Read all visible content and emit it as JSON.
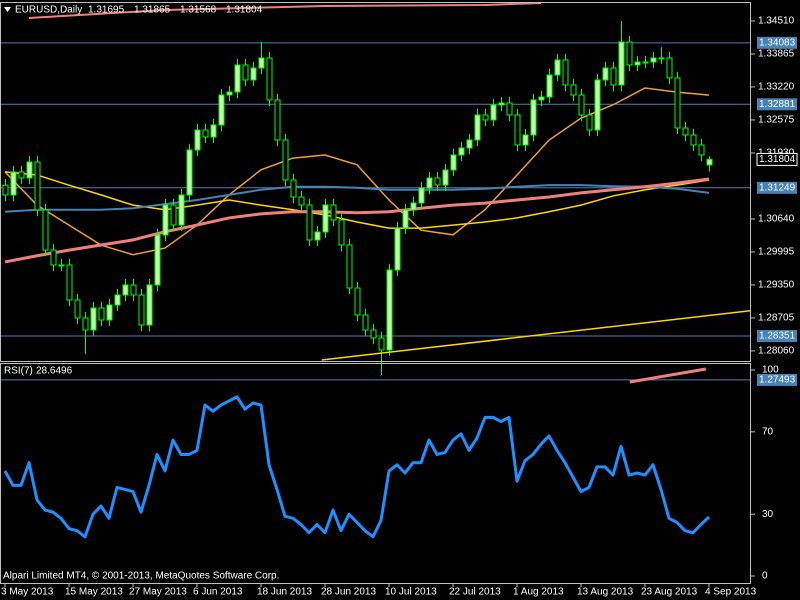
{
  "watermark": "Alpari Limited MT4, © 2001-2013, MetaQuotes Software Corp.",
  "chart_data": [
    {
      "type": "candlestick",
      "title": "EURUSD,Daily",
      "categories": [
        "3 May 2013",
        null,
        null,
        null,
        null,
        null,
        null,
        null,
        "15 May 2013",
        null,
        null,
        null,
        null,
        null,
        null,
        null,
        "27 May 2013",
        null,
        null,
        null,
        null,
        null,
        null,
        null,
        "6 Jun 2013",
        null,
        null,
        null,
        null,
        null,
        null,
        null,
        "18 Jun 2013",
        null,
        null,
        null,
        null,
        null,
        null,
        null,
        "28 Jun 2013",
        null,
        null,
        null,
        null,
        null,
        null,
        null,
        "10 Jul 2013",
        null,
        null,
        null,
        null,
        null,
        null,
        null,
        "22 Jul 2013",
        null,
        null,
        null,
        null,
        null,
        null,
        null,
        "1 Aug 2013",
        null,
        null,
        null,
        null,
        null,
        null,
        null,
        "13 Aug 2013",
        null,
        null,
        null,
        null,
        null,
        null,
        null,
        "23 Aug 2013",
        null,
        null,
        null,
        null,
        null,
        null,
        null,
        "4 Sep 2013"
      ],
      "open": [
        1.313,
        1.31108,
        1.31558,
        1.31441,
        1.31753,
        1.30815,
        1.30033,
        1.2974,
        1.2974,
        1.29056,
        1.28704,
        1.28469,
        1.28899,
        1.28665,
        1.28958,
        1.29153,
        1.29349,
        1.29153,
        1.28567,
        1.29349,
        1.30326,
        1.30913,
        1.30522,
        1.31108,
        1.31988,
        1.32379,
        1.32242,
        1.32477,
        1.33063,
        1.33122,
        1.3365,
        1.33357,
        1.33591,
        1.33787,
        1.32966,
        1.32184,
        1.31402,
        1.31069,
        1.30913,
        1.30229,
        1.30385,
        1.30913,
        1.3062,
        1.30131,
        1.2929,
        1.28762,
        1.28469,
        1.28313,
        1.28078,
        1.29642,
        1.30463,
        1.30815,
        1.30952,
        1.31245,
        1.31441,
        1.31304,
        1.31597,
        1.3189,
        1.32027,
        1.32184,
        1.32672,
        1.32575,
        1.32868,
        1.32907,
        1.32672,
        1.32086,
        1.32281,
        1.32966,
        1.33024,
        1.33454,
        1.33748,
        1.33259,
        1.33063,
        1.32672,
        1.32379,
        1.33357,
        1.33591,
        1.33259,
        1.34099,
        1.3365,
        1.33708,
        1.33708,
        1.33787,
        1.33787,
        1.33396,
        1.32418,
        1.32281,
        1.32086,
        1.31695
      ],
      "high": [
        1.3142,
        1.31678,
        1.31678,
        1.31873,
        1.31873,
        1.30935,
        1.30153,
        1.2986,
        1.2986,
        1.29176,
        1.28824,
        1.29019,
        1.29019,
        1.29078,
        1.29273,
        1.29469,
        1.29469,
        1.29273,
        1.29469,
        1.30446,
        1.31033,
        1.31033,
        1.31228,
        1.32108,
        1.32499,
        1.32499,
        1.32597,
        1.33183,
        1.33242,
        1.3377,
        1.3377,
        1.33711,
        1.341,
        1.33907,
        1.33086,
        1.32304,
        1.31522,
        1.31189,
        1.31033,
        1.30505,
        1.31033,
        1.31033,
        1.3074,
        1.30251,
        1.2941,
        1.28882,
        1.28589,
        1.28433,
        1.29762,
        1.30583,
        1.30935,
        1.31072,
        1.31365,
        1.31561,
        1.31561,
        1.31717,
        1.3201,
        1.32147,
        1.32304,
        1.32792,
        1.32792,
        1.32988,
        1.33027,
        1.33027,
        1.32792,
        1.32401,
        1.33086,
        1.33144,
        1.33574,
        1.33868,
        1.33868,
        1.33379,
        1.33183,
        1.32792,
        1.33477,
        1.33711,
        1.33711,
        1.3451,
        1.34219,
        1.33828,
        1.33828,
        1.33907,
        1.34,
        1.33907,
        1.33516,
        1.32538,
        1.32401,
        1.32206,
        1.31865
      ],
      "low": [
        1.30988,
        1.30988,
        1.31321,
        1.31321,
        1.30695,
        1.29913,
        1.2962,
        1.2962,
        1.28936,
        1.28584,
        1.28,
        1.28349,
        1.28545,
        1.28545,
        1.28838,
        1.29033,
        1.29033,
        1.28447,
        1.28447,
        1.29229,
        1.30206,
        1.30402,
        1.30402,
        1.30988,
        1.31868,
        1.32122,
        1.32122,
        1.32357,
        1.32943,
        1.33002,
        1.33237,
        1.33237,
        1.33471,
        1.32846,
        1.32064,
        1.31282,
        1.30949,
        1.30793,
        1.30109,
        1.30109,
        1.30265,
        1.305,
        1.30011,
        1.2917,
        1.28642,
        1.28349,
        1.28193,
        1.2759,
        1.27958,
        1.29522,
        1.30343,
        1.30695,
        1.30832,
        1.31125,
        1.31184,
        1.31184,
        1.31477,
        1.3177,
        1.31907,
        1.32064,
        1.32455,
        1.32455,
        1.32748,
        1.32552,
        1.31966,
        1.31966,
        1.32161,
        1.32846,
        1.32904,
        1.33334,
        1.33139,
        1.32943,
        1.32552,
        1.32259,
        1.32259,
        1.33237,
        1.33139,
        1.33139,
        1.3353,
        1.3353,
        1.33588,
        1.33588,
        1.33667,
        1.33276,
        1.32298,
        1.32161,
        1.31966,
        1.3177,
        1.31568
      ],
      "close": [
        1.31108,
        1.31558,
        1.31441,
        1.31753,
        1.30815,
        1.30033,
        1.2974,
        1.2974,
        1.29056,
        1.28704,
        1.28469,
        1.28899,
        1.28665,
        1.28958,
        1.29153,
        1.29349,
        1.29153,
        1.28567,
        1.29349,
        1.30326,
        1.30913,
        1.30522,
        1.31108,
        1.31988,
        1.32379,
        1.32242,
        1.32477,
        1.33063,
        1.33122,
        1.3365,
        1.33357,
        1.33591,
        1.33787,
        1.32966,
        1.32184,
        1.31402,
        1.31069,
        1.30913,
        1.30229,
        1.30385,
        1.30913,
        1.3062,
        1.30131,
        1.2929,
        1.28762,
        1.28469,
        1.28313,
        1.28078,
        1.29642,
        1.30463,
        1.30815,
        1.30952,
        1.31245,
        1.31441,
        1.31304,
        1.31597,
        1.3189,
        1.32027,
        1.32184,
        1.32672,
        1.32575,
        1.32868,
        1.32907,
        1.32672,
        1.32086,
        1.32281,
        1.32966,
        1.33024,
        1.33454,
        1.33748,
        1.33259,
        1.33063,
        1.32672,
        1.32379,
        1.33357,
        1.33591,
        1.33259,
        1.34099,
        1.3365,
        1.33708,
        1.33708,
        1.33787,
        1.33787,
        1.33396,
        1.32418,
        1.32281,
        1.32086,
        1.3189,
        1.31804
      ],
      "up_color": "#c8f5b0",
      "down_color": "#000000",
      "wick_color": "#00ff00",
      "ylim": [
        1.27863,
        1.34881
      ],
      "yticks": [
        {
          "value": 1.3451,
          "label": "1.34510"
        },
        1.33865,
        {
          "value": 1.3322,
          "label": "1.33220"
        },
        1.32575,
        {
          "value": 1.3193,
          "label": "1.31930"
        },
        {
          "value": 1.3064,
          "label": "1.30640"
        },
        1.29995,
        {
          "value": 1.2935,
          "label": "1.29350"
        },
        1.28705,
        {
          "value": 1.2806,
          "label": "1.28060"
        }
      ],
      "hlines": [
        1.34083,
        1.32881,
        1.31249,
        1.28351,
        1.27493
      ],
      "hline_color": "#4682b4",
      "ma": [
        {
          "color": "#f0a030",
          "width": 1.5,
          "x": [
            0,
            4,
            8,
            12,
            16,
            20,
            24,
            28,
            32,
            36,
            40,
            44,
            48,
            52,
            56,
            60,
            64,
            68,
            72,
            76,
            80,
            84,
            88
          ],
          "values": [
            1.3156,
            1.3091,
            1.3052,
            1.3013,
            1.2994,
            1.3007,
            1.3052,
            1.3111,
            1.316,
            1.3183,
            1.3189,
            1.317,
            1.3101,
            1.3042,
            1.3033,
            1.3082,
            1.315,
            1.3218,
            1.3261,
            1.3287,
            1.332,
            1.3312,
            1.3306
          ]
        },
        {
          "color": "#ffd700",
          "width": 1.5,
          "x": [
            0,
            4,
            8,
            12,
            16,
            20,
            24,
            28,
            32,
            36,
            40,
            44,
            48,
            52,
            56,
            60,
            64,
            68,
            72,
            76,
            80,
            84,
            88
          ],
          "values": [
            1.3156,
            1.315,
            1.313,
            1.3111,
            1.3091,
            1.3082,
            1.3091,
            1.3101,
            1.3091,
            1.3082,
            1.3072,
            1.3058,
            1.3046,
            1.3046,
            1.3052,
            1.3058,
            1.3066,
            1.3078,
            1.3091,
            1.3109,
            1.3121,
            1.313,
            1.314
          ]
        },
        {
          "color": "#4682b4",
          "width": 2,
          "x": [
            0,
            4,
            8,
            12,
            16,
            20,
            24,
            28,
            32,
            36,
            40,
            44,
            48,
            52,
            56,
            60,
            64,
            68,
            72,
            76,
            80,
            84,
            88
          ],
          "values": [
            1.3078,
            1.3082,
            1.3082,
            1.3082,
            1.3085,
            1.3093,
            1.3101,
            1.3111,
            1.3121,
            1.3127,
            1.3127,
            1.3125,
            1.3121,
            1.3121,
            1.3121,
            1.3123,
            1.3127,
            1.313,
            1.313,
            1.3128,
            1.3127,
            1.3123,
            1.3115
          ]
        },
        {
          "color": "#f08080",
          "width": 3,
          "x": [
            0,
            4,
            8,
            12,
            16,
            20,
            24,
            28,
            32,
            36,
            40,
            44,
            48,
            52,
            56,
            60,
            64,
            68,
            72,
            76,
            80,
            84,
            88
          ],
          "values": [
            1.298,
            1.2992,
            1.3003,
            1.3013,
            1.3023,
            1.3039,
            1.3052,
            1.3066,
            1.3074,
            1.3078,
            1.3078,
            1.3076,
            1.3078,
            1.3085,
            1.3091,
            1.3095,
            1.3101,
            1.3107,
            1.3115,
            1.3121,
            1.3127,
            1.3134,
            1.3142
          ]
        },
        {
          "color": "#f08080",
          "width": 2,
          "x": [
            3,
            20,
            40,
            60,
            67
          ],
          "values": [
            1.34569,
            1.34725,
            1.34803,
            1.34823,
            1.34862
          ]
        }
      ],
      "trendlines": [
        {
          "color": "#ffd700",
          "width": 1.5,
          "x": [
            39.6,
            93.9
          ],
          "values": [
            1.27883,
            1.2886
          ]
        },
        {
          "color": "#f08080",
          "width": 3,
          "x": [
            78.1,
            87.6
          ],
          "values": [
            1.27452,
            1.27707
          ]
        }
      ]
    },
    {
      "type": "line",
      "title": "RSI(7)",
      "values": [
        51,
        44,
        44,
        55,
        37,
        32,
        31,
        28,
        23,
        22,
        19,
        30,
        34,
        28,
        43,
        42,
        41,
        31,
        44,
        59,
        51,
        66,
        59,
        59,
        61,
        83,
        80,
        83,
        85,
        87,
        81,
        84,
        83,
        54,
        42,
        29,
        28,
        25,
        21,
        25,
        21,
        32,
        22,
        30,
        26,
        22,
        19,
        27,
        51,
        54,
        50,
        55,
        55,
        66,
        59,
        60,
        66,
        69,
        61,
        67,
        77,
        77,
        75,
        77,
        46,
        56,
        59,
        64,
        68,
        61,
        55,
        48,
        41,
        43,
        53,
        53,
        49,
        63,
        49,
        50,
        49,
        54,
        42,
        28,
        26,
        22,
        21,
        25,
        28.6496
      ],
      "color": "#1e90ff",
      "ylim": [
        -3.4,
        103.4
      ],
      "yticks": [
        0,
        30,
        70,
        100
      ]
    }
  ]
}
